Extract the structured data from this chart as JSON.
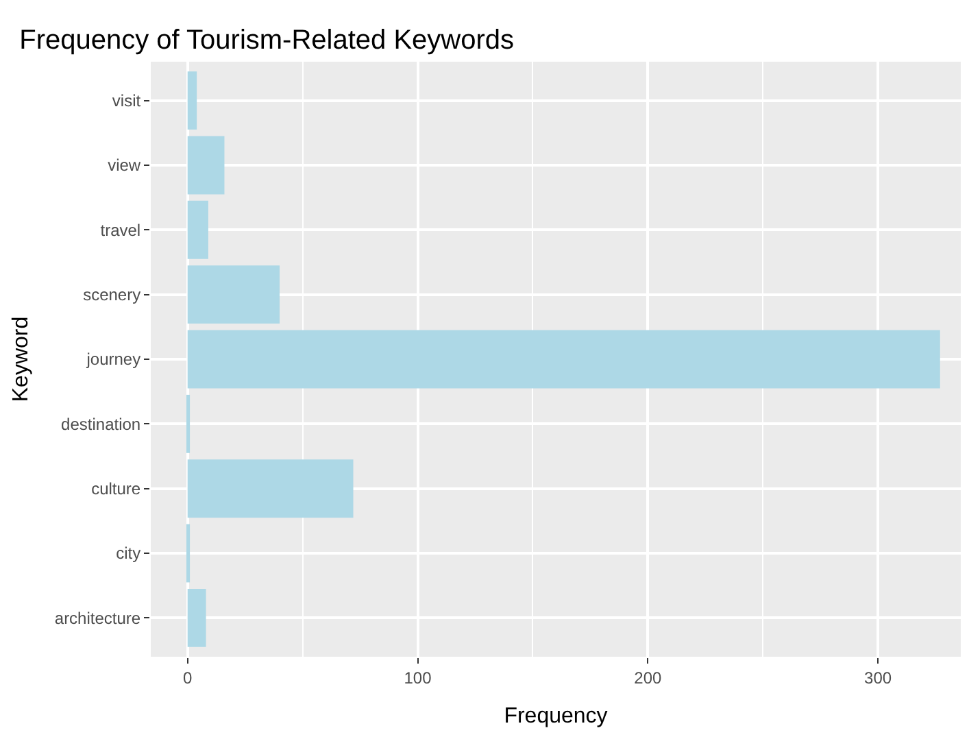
{
  "chart_data": {
    "type": "bar",
    "orientation": "horizontal",
    "title": "Frequency of Tourism-Related Keywords",
    "xlabel": "Frequency",
    "ylabel": "Keyword",
    "categories": [
      "visit",
      "view",
      "travel",
      "scenery",
      "journey",
      "destination",
      "culture",
      "city",
      "architecture"
    ],
    "values": [
      4,
      16,
      9,
      40,
      327,
      1,
      72,
      1,
      8
    ],
    "color": "#add8e6",
    "xlim": [
      -16,
      336
    ],
    "xticks": [
      0,
      100,
      200,
      300
    ],
    "grid": true
  }
}
